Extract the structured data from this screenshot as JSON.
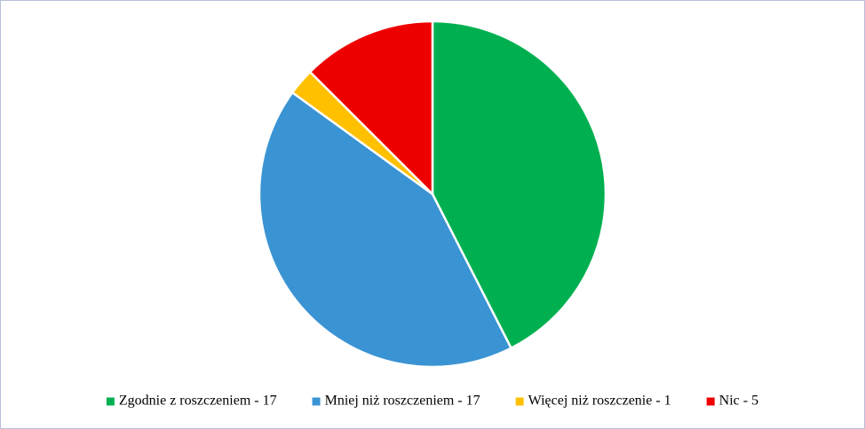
{
  "chart_data": {
    "type": "pie",
    "categories": [
      "Zgodnie z roszczeniem - 17",
      "Mniej niż roszczeniem - 17",
      "Więcej niż roszczenie - 1",
      "Nic - 5"
    ],
    "values": [
      17,
      17,
      1,
      5
    ],
    "colors": [
      "#00b050",
      "#3a93d3",
      "#ffc000",
      "#ee0000"
    ],
    "legend": "bottom"
  }
}
